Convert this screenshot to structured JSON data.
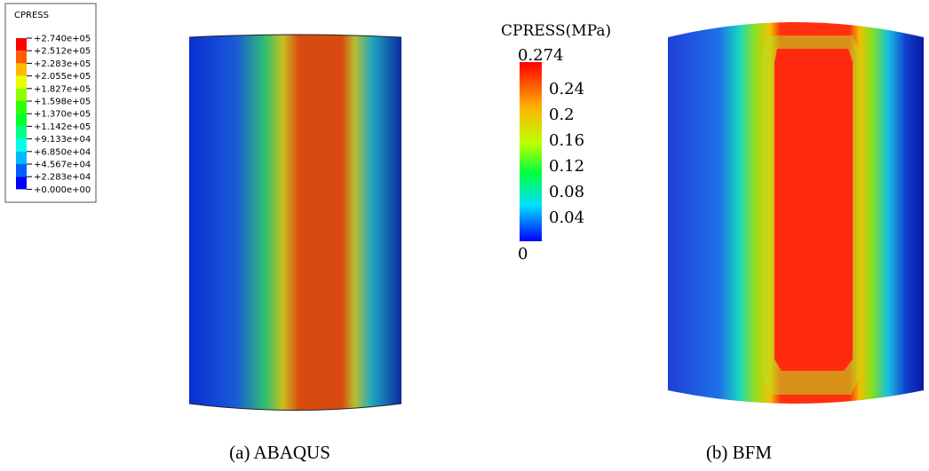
{
  "legend_a": {
    "title": "CPRESS",
    "labels": [
      "+2.740e+05",
      "+2.512e+05",
      "+2.283e+05",
      "+2.055e+05",
      "+1.827e+05",
      "+1.598e+05",
      "+1.370e+05",
      "+1.142e+05",
      "+9.133e+04",
      "+6.850e+04",
      "+4.567e+04",
      "+2.283e+04",
      "+0.000e+00"
    ]
  },
  "legend_b": {
    "title": "CPRESS(MPa)",
    "ticks": [
      "0.274",
      "0.24",
      "0.2",
      "0.16",
      "0.12",
      "0.08",
      "0.04",
      "0"
    ]
  },
  "captions": [
    "(a) ABAQUS",
    "(b) BFM"
  ]
}
